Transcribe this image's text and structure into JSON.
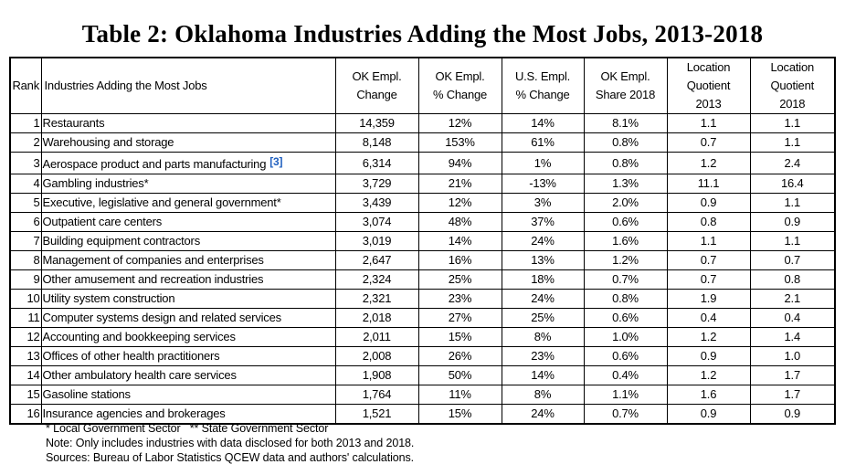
{
  "title": "Table 2: Oklahoma Industries Adding the Most Jobs, 2013-2018",
  "headers": {
    "rank": "Rank",
    "industry": "Industries Adding the Most Jobs",
    "ok_change": [
      "OK Empl.",
      "Change"
    ],
    "ok_pct": [
      "OK Empl.",
      "% Change"
    ],
    "us_pct": [
      "U.S. Empl.",
      "% Change"
    ],
    "share": [
      "OK Empl.",
      "Share 2018"
    ],
    "lq2013": [
      "Location",
      "Quotient",
      "2013"
    ],
    "lq2018": [
      "Location",
      "Quotient",
      "2018"
    ]
  },
  "rows": [
    {
      "rank": "1",
      "industry": "Restaurants",
      "ok_change": "14,359",
      "ok_pct": "12%",
      "us_pct": "14%",
      "share": "8.1%",
      "lq2013": "1.1",
      "lq2018": "1.1"
    },
    {
      "rank": "2",
      "industry": "Warehousing and storage",
      "ok_change": "8,148",
      "ok_pct": "153%",
      "us_pct": "61%",
      "share": "0.8%",
      "lq2013": "0.7",
      "lq2018": "1.1"
    },
    {
      "rank": "3",
      "industry": "Aerospace product and parts manufacturing",
      "ref": "[3]",
      "ok_change": "6,314",
      "ok_pct": "94%",
      "us_pct": "1%",
      "share": "0.8%",
      "lq2013": "1.2",
      "lq2018": "2.4"
    },
    {
      "rank": "4",
      "industry": "Gambling industries*",
      "ok_change": "3,729",
      "ok_pct": "21%",
      "us_pct": "-13%",
      "share": "1.3%",
      "lq2013": "11.1",
      "lq2018": "16.4"
    },
    {
      "rank": "5",
      "industry": "Executive, legislative and general government*",
      "ok_change": "3,439",
      "ok_pct": "12%",
      "us_pct": "3%",
      "share": "2.0%",
      "lq2013": "0.9",
      "lq2018": "1.1"
    },
    {
      "rank": "6",
      "industry": "Outpatient care centers",
      "ok_change": "3,074",
      "ok_pct": "48%",
      "us_pct": "37%",
      "share": "0.6%",
      "lq2013": "0.8",
      "lq2018": "0.9"
    },
    {
      "rank": "7",
      "industry": "Building equipment contractors",
      "ok_change": "3,019",
      "ok_pct": "14%",
      "us_pct": "24%",
      "share": "1.6%",
      "lq2013": "1.1",
      "lq2018": "1.1"
    },
    {
      "rank": "8",
      "industry": "Management of companies and enterprises",
      "ok_change": "2,647",
      "ok_pct": "16%",
      "us_pct": "13%",
      "share": "1.2%",
      "lq2013": "0.7",
      "lq2018": "0.7"
    },
    {
      "rank": "9",
      "industry": "Other amusement and recreation industries",
      "ok_change": "2,324",
      "ok_pct": "25%",
      "us_pct": "18%",
      "share": "0.7%",
      "lq2013": "0.7",
      "lq2018": "0.8"
    },
    {
      "rank": "10",
      "industry": "Utility system construction",
      "ok_change": "2,321",
      "ok_pct": "23%",
      "us_pct": "24%",
      "share": "0.8%",
      "lq2013": "1.9",
      "lq2018": "2.1"
    },
    {
      "rank": "11",
      "industry": "Computer systems design and related services",
      "ok_change": "2,018",
      "ok_pct": "27%",
      "us_pct": "25%",
      "share": "0.6%",
      "lq2013": "0.4",
      "lq2018": "0.4"
    },
    {
      "rank": "12",
      "industry": "Accounting and bookkeeping services",
      "ok_change": "2,011",
      "ok_pct": "15%",
      "us_pct": "8%",
      "share": "1.0%",
      "lq2013": "1.2",
      "lq2018": "1.4"
    },
    {
      "rank": "13",
      "industry": "Offices of other health practitioners",
      "ok_change": "2,008",
      "ok_pct": "26%",
      "us_pct": "23%",
      "share": "0.6%",
      "lq2013": "0.9",
      "lq2018": "1.0"
    },
    {
      "rank": "14",
      "industry": "Other ambulatory health care services",
      "ok_change": "1,908",
      "ok_pct": "50%",
      "us_pct": "14%",
      "share": "0.4%",
      "lq2013": "1.2",
      "lq2018": "1.7"
    },
    {
      "rank": "15",
      "industry": "Gasoline stations",
      "ok_change": "1,764",
      "ok_pct": "11%",
      "us_pct": "8%",
      "share": "1.1%",
      "lq2013": "1.6",
      "lq2018": "1.7"
    },
    {
      "rank": "16",
      "industry": "Insurance agencies and brokerages",
      "ok_change": "1,521",
      "ok_pct": "15%",
      "us_pct": "24%",
      "share": "0.7%",
      "lq2013": "0.9",
      "lq2018": "0.9"
    }
  ],
  "notes": [
    "* Local Government Sector   ** State Government Sector",
    "Note: Only includes industries with data disclosed for both 2013 and 2018.",
    "Sources: Bureau of Labor Statistics QCEW data and authors' calculations."
  ]
}
